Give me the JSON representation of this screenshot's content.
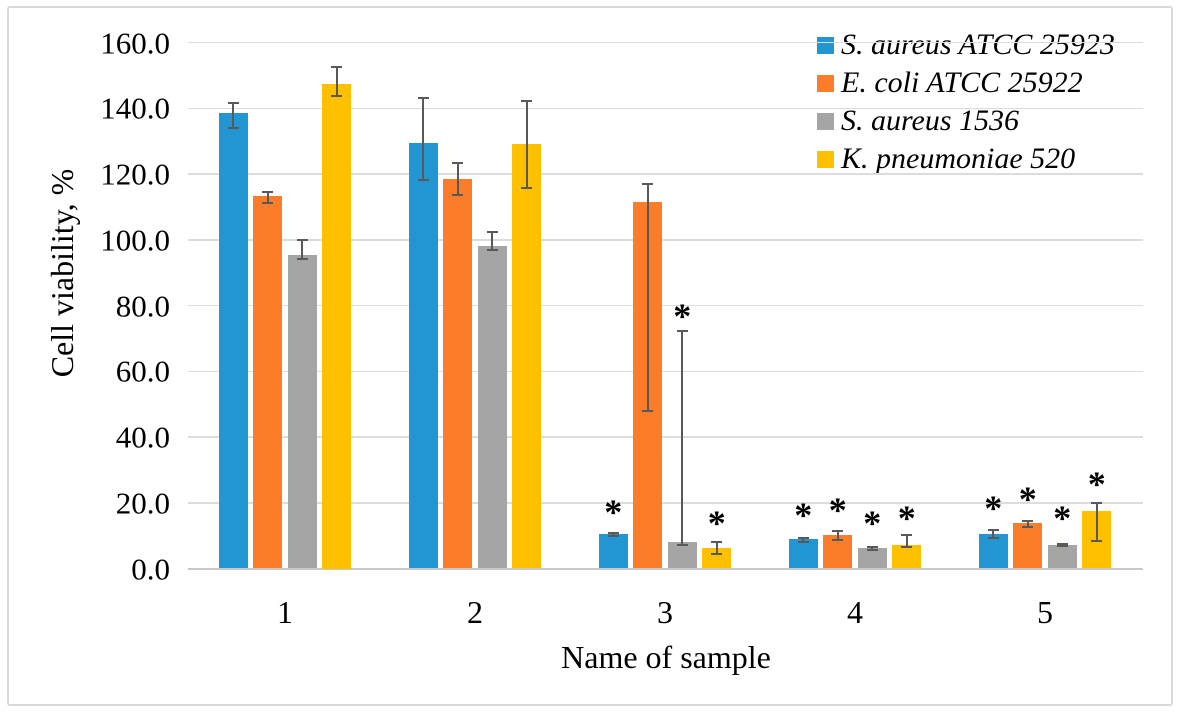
{
  "frame": {
    "border_color": "#d9d9d9",
    "background": "#ffffff"
  },
  "chart_data": {
    "type": "bar",
    "title": "",
    "xlabel": "Name of sample",
    "ylabel": "Cell viability, %",
    "categories": [
      "1",
      "2",
      "3",
      "4",
      "5"
    ],
    "y_axis": {
      "min": 0,
      "max": 160,
      "step": 20,
      "tick_labels": [
        "0.0",
        "20.0",
        "40.0",
        "60.0",
        "80.0",
        "100.0",
        "120.0",
        "140.0",
        "160.0"
      ]
    },
    "grid": true,
    "legend_position": "top-right",
    "gridline_color": "#dcdcdc",
    "axis_line_color": "#c9c9c9",
    "error_bar_color": "#595959",
    "significance_marker": "*",
    "series": [
      {
        "name": "S. aureus ATCC 25923",
        "color": "#2196d3",
        "values": [
          138.5,
          129.5,
          10.4,
          8.9,
          10.4
        ],
        "err_low": [
          133.6,
          118.0,
          9.7,
          7.9,
          9.1
        ],
        "err_high": [
          142.0,
          143.4,
          11.1,
          9.6,
          11.9
        ],
        "stars": [
          null,
          null,
          20.0,
          19.0,
          21.0
        ]
      },
      {
        "name": "E. coli ATCC 25922",
        "color": "#fb7d2a",
        "values": [
          113.3,
          118.5,
          111.5,
          10.1,
          13.7
        ],
        "err_low": [
          110.9,
          113.2,
          47.6,
          8.5,
          12.4
        ],
        "err_high": [
          114.9,
          123.6,
          117.2,
          11.7,
          14.7
        ],
        "stars": [
          null,
          null,
          null,
          20.5,
          24.0
        ]
      },
      {
        "name": "S. aureus 1536",
        "color": "#a5a5a5",
        "values": [
          95.4,
          98.0,
          8.1,
          6.1,
          7.3
        ],
        "err_low": [
          93.9,
          96.5,
          6.7,
          5.4,
          6.6
        ],
        "err_high": [
          100.3,
          102.8,
          72.5,
          6.7,
          7.9
        ],
        "stars": [
          null,
          null,
          79.5,
          16.5,
          18.0
        ]
      },
      {
        "name": "K. pneumoniae 520",
        "color": "#ffc000",
        "values": [
          147.5,
          129.0,
          6.2,
          7.3,
          17.4
        ],
        "err_low": [
          143.3,
          115.5,
          4.0,
          6.1,
          8.1
        ],
        "err_high": [
          152.8,
          142.4,
          8.3,
          10.4,
          20.3
        ],
        "stars": [
          null,
          null,
          16.5,
          18.0,
          28.4
        ]
      }
    ]
  }
}
